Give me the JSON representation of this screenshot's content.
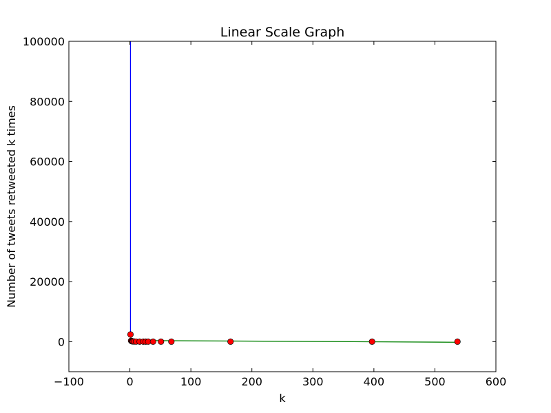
{
  "chart_data": {
    "type": "line",
    "title": "Linear Scale Graph",
    "xlabel": "k",
    "ylabel": "Number of tweets retweeted k times",
    "xlim": [
      -100,
      600
    ],
    "ylim": [
      -10000,
      100000
    ],
    "x_ticks": [
      "−100",
      "0",
      "100",
      "200",
      "300",
      "400",
      "500",
      "600"
    ],
    "x_tick_values": [
      -100,
      0,
      100,
      200,
      300,
      400,
      500,
      600
    ],
    "y_ticks": [
      "0",
      "20000",
      "40000",
      "60000",
      "80000",
      "100000"
    ],
    "y_tick_values": [
      0,
      20000,
      40000,
      60000,
      80000,
      100000
    ],
    "grid": false,
    "series": [
      {
        "color": "#0000ff",
        "style": "line",
        "x": [
          1,
          1
        ],
        "y": [
          2400,
          100000
        ]
      },
      {
        "color": "#ff0000",
        "style": "markers",
        "x": [
          1,
          2,
          3,
          4,
          5,
          7,
          10,
          16,
          22,
          26,
          30,
          38,
          51,
          68,
          165,
          397,
          537
        ],
        "y": [
          2400,
          300,
          150,
          100,
          70,
          40,
          25,
          12,
          8,
          6,
          5,
          4,
          3,
          2,
          1,
          1,
          1
        ]
      },
      {
        "color": "#008000",
        "style": "line",
        "x": [
          1,
          537
        ],
        "y": [
          400,
          -200
        ]
      }
    ]
  }
}
